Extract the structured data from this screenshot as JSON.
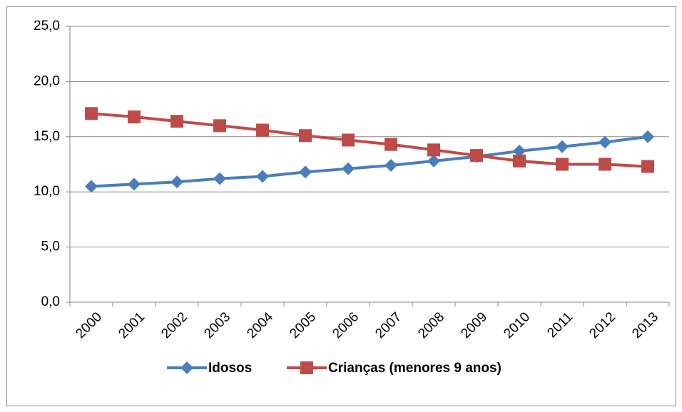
{
  "chart_data": {
    "type": "line",
    "categories": [
      "2000",
      "2001",
      "2002",
      "2003",
      "2004",
      "2005",
      "2006",
      "2007",
      "2008",
      "2009",
      "2010",
      "2011",
      "2012",
      "2013"
    ],
    "series": [
      {
        "name": "Idosos",
        "color": "#4a7ebb",
        "marker": "diamond",
        "values": [
          10.5,
          10.7,
          10.9,
          11.2,
          11.4,
          11.8,
          12.1,
          12.4,
          12.8,
          13.2,
          13.7,
          14.1,
          14.5,
          15.0
        ]
      },
      {
        "name": "Crianças (menores 9 anos)",
        "color": "#be4b48",
        "marker": "square",
        "values": [
          17.1,
          16.8,
          16.4,
          16.0,
          15.6,
          15.1,
          14.7,
          14.3,
          13.8,
          13.3,
          12.8,
          12.5,
          12.5,
          12.3
        ]
      }
    ],
    "ylim": [
      0,
      25
    ],
    "yticks": [
      {
        "value": 0,
        "label": "0,0"
      },
      {
        "value": 5,
        "label": "5,0"
      },
      {
        "value": 10,
        "label": "10,0"
      },
      {
        "value": 15,
        "label": "15,0"
      },
      {
        "value": 20,
        "label": "20,0"
      },
      {
        "value": 25,
        "label": "25,0"
      }
    ],
    "grid": true,
    "legend": "bottom"
  }
}
